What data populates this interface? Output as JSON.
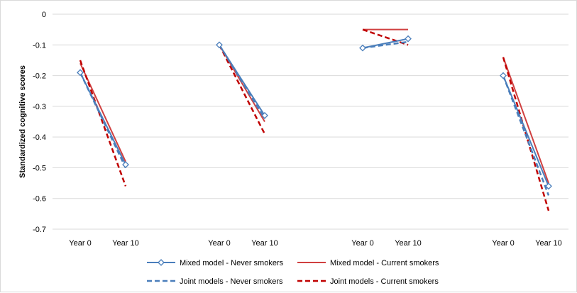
{
  "chart_data": {
    "type": "line",
    "title": "",
    "xlabel": "",
    "ylabel": "Standardized cognitive scores",
    "ylim": [
      -0.7,
      0
    ],
    "yticks": [
      0,
      -0.1,
      -0.2,
      -0.3,
      -0.4,
      -0.5,
      -0.6,
      -0.7
    ],
    "ytick_labels": [
      "0",
      "-0.1",
      "-0.2",
      "-0.3",
      "-0.4",
      "-0.5",
      "-0.6",
      "-0.7"
    ],
    "grid": true,
    "legend_position": "bottom",
    "groups": [
      {
        "x": [
          "Year 0",
          "Year 10"
        ],
        "series": [
          {
            "name": "Mixed model - Never smokers",
            "values": [
              -0.19,
              -0.49
            ]
          },
          {
            "name": "Mixed model - Current smokers",
            "values": [
              -0.16,
              -0.48
            ]
          },
          {
            "name": "Joint models - Never smokers",
            "values": [
              -0.19,
              -0.5
            ]
          },
          {
            "name": "Joint models - Current smokers",
            "values": [
              -0.15,
              -0.56
            ]
          }
        ]
      },
      {
        "x": [
          "Year 0",
          "Year 10"
        ],
        "series": [
          {
            "name": "Mixed model - Never smokers",
            "values": [
              -0.1,
              -0.33
            ]
          },
          {
            "name": "Mixed model - Current smokers",
            "values": [
              -0.1,
              -0.35
            ]
          },
          {
            "name": "Joint models - Never smokers",
            "values": [
              -0.1,
              -0.34
            ]
          },
          {
            "name": "Joint models - Current smokers",
            "values": [
              -0.1,
              -0.39
            ]
          }
        ]
      },
      {
        "x": [
          "Year 0",
          "Year 10"
        ],
        "series": [
          {
            "name": "Mixed model - Never smokers",
            "values": [
              -0.11,
              -0.08
            ]
          },
          {
            "name": "Mixed model - Current smokers",
            "values": [
              -0.05,
              -0.05
            ]
          },
          {
            "name": "Joint models - Never smokers",
            "values": [
              -0.11,
              -0.09
            ]
          },
          {
            "name": "Joint models - Current smokers",
            "values": [
              -0.05,
              -0.1
            ]
          }
        ]
      },
      {
        "x": [
          "Year 0",
          "Year 10"
        ],
        "series": [
          {
            "name": "Mixed model - Never smokers",
            "values": [
              -0.2,
              -0.56
            ]
          },
          {
            "name": "Mixed model - Current smokers",
            "values": [
              -0.14,
              -0.55
            ]
          },
          {
            "name": "Joint models - Never smokers",
            "values": [
              -0.2,
              -0.59
            ]
          },
          {
            "name": "Joint models - Current smokers",
            "values": [
              -0.14,
              -0.64
            ]
          }
        ]
      }
    ],
    "legend": [
      {
        "name": "Mixed model - Never smokers",
        "color": "#4a7ebb",
        "dash": "solid",
        "marker": "diamond"
      },
      {
        "name": "Mixed model - Current smokers",
        "color": "#d04040",
        "dash": "solid",
        "marker": "none"
      },
      {
        "name": "Joint models - Never smokers",
        "color": "#4a7ebb",
        "dash": "dashed",
        "marker": "none"
      },
      {
        "name": "Joint models - Current smokers",
        "color": "#c00000",
        "dash": "dashed",
        "marker": "none"
      }
    ]
  }
}
